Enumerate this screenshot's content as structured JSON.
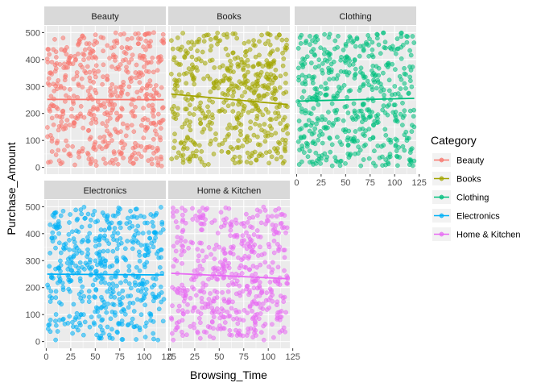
{
  "chart_data": {
    "type": "scatter",
    "facet_by": "Category",
    "xlabel": "Browsing_Time",
    "ylabel": "Purchase_Amount",
    "xlim": [
      -2,
      122
    ],
    "ylim": [
      -25,
      525
    ],
    "x_ticks": [
      0,
      25,
      50,
      75,
      100,
      125
    ],
    "y_ticks": [
      0,
      100,
      200,
      300,
      400,
      500
    ],
    "x_tick_labels": [
      "0",
      "25",
      "50",
      "75",
      "100",
      "125"
    ],
    "y_tick_labels": [
      "0",
      "100",
      "200",
      "300",
      "400",
      "500"
    ],
    "points_per_panel": 500,
    "x_range": [
      1,
      120
    ],
    "y_range": [
      5,
      500
    ],
    "grid": true,
    "legend": {
      "title": "Category",
      "placement": "right",
      "entries": [
        "Beauty",
        "Books",
        "Clothing",
        "Electronics",
        "Home & Kitchen"
      ]
    },
    "series": [
      {
        "name": "Beauty",
        "color": "#F8766D",
        "trend": {
          "x": [
            1,
            120
          ],
          "y": [
            252,
            251
          ]
        }
      },
      {
        "name": "Books",
        "color": "#A3A500",
        "trend": {
          "x": [
            1,
            120
          ],
          "y": [
            272,
            233
          ]
        }
      },
      {
        "name": "Clothing",
        "color": "#00BF7D",
        "trend": {
          "x": [
            1,
            120
          ],
          "y": [
            246,
            256
          ]
        }
      },
      {
        "name": "Electronics",
        "color": "#00B0F6",
        "trend": {
          "x": [
            1,
            120
          ],
          "y": [
            250,
            247
          ]
        }
      },
      {
        "name": "Home & Kitchen",
        "color": "#E76BF3",
        "trend": {
          "x": [
            1,
            120
          ],
          "y": [
            253,
            233
          ]
        }
      }
    ]
  }
}
